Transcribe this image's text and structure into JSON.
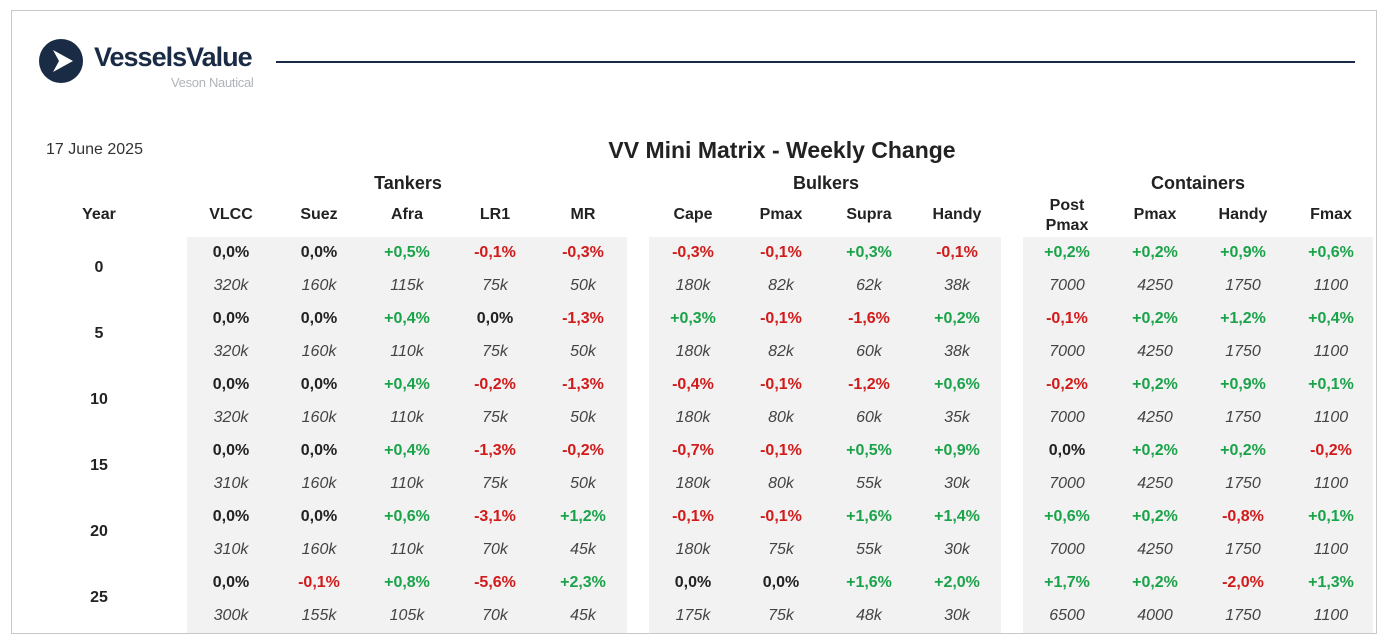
{
  "brand": {
    "name": "VesselsValue",
    "tagline": "Veson Nautical",
    "logo_icon": "play-triangle-circle-icon"
  },
  "report": {
    "date": "17 June 2025",
    "title": "VV Mini Matrix - Weekly Change"
  },
  "groups": [
    {
      "label": "Tankers"
    },
    {
      "label": "Bulkers"
    },
    {
      "label": "Containers"
    }
  ],
  "year_header": "Year",
  "columns": [
    "VLCC",
    "Suez",
    "Afra",
    "LR1",
    "MR",
    "Cape",
    "Pmax",
    "Supra",
    "Handy",
    "Post\nPmax",
    "Pmax",
    "Handy",
    "Fmax"
  ],
  "rows": [
    {
      "year": "0",
      "changes": [
        "0,0%",
        "0,0%",
        "+0,5%",
        "-0,1%",
        "-0,3%",
        "-0,3%",
        "-0,1%",
        "+0,3%",
        "-0,1%",
        "+0,2%",
        "+0,2%",
        "+0,9%",
        "+0,6%"
      ],
      "values": [
        "320k",
        "160k",
        "115k",
        "75k",
        "50k",
        "180k",
        "82k",
        "62k",
        "38k",
        "7000",
        "4250",
        "1750",
        "1100"
      ]
    },
    {
      "year": "5",
      "changes": [
        "0,0%",
        "0,0%",
        "+0,4%",
        "0,0%",
        "-1,3%",
        "+0,3%",
        "-0,1%",
        "-1,6%",
        "+0,2%",
        "-0,1%",
        "+0,2%",
        "+1,2%",
        "+0,4%"
      ],
      "values": [
        "320k",
        "160k",
        "110k",
        "75k",
        "50k",
        "180k",
        "82k",
        "60k",
        "38k",
        "7000",
        "4250",
        "1750",
        "1100"
      ]
    },
    {
      "year": "10",
      "changes": [
        "0,0%",
        "0,0%",
        "+0,4%",
        "-0,2%",
        "-1,3%",
        "-0,4%",
        "-0,1%",
        "-1,2%",
        "+0,6%",
        "-0,2%",
        "+0,2%",
        "+0,9%",
        "+0,1%"
      ],
      "values": [
        "320k",
        "160k",
        "110k",
        "75k",
        "50k",
        "180k",
        "80k",
        "60k",
        "35k",
        "7000",
        "4250",
        "1750",
        "1100"
      ]
    },
    {
      "year": "15",
      "changes": [
        "0,0%",
        "0,0%",
        "+0,4%",
        "-1,3%",
        "-0,2%",
        "-0,7%",
        "-0,1%",
        "+0,5%",
        "+0,9%",
        "0,0%",
        "+0,2%",
        "+0,2%",
        "-0,2%"
      ],
      "values": [
        "310k",
        "160k",
        "110k",
        "75k",
        "50k",
        "180k",
        "80k",
        "55k",
        "30k",
        "7000",
        "4250",
        "1750",
        "1100"
      ]
    },
    {
      "year": "20",
      "changes": [
        "0,0%",
        "0,0%",
        "+0,6%",
        "-3,1%",
        "+1,2%",
        "-0,1%",
        "-0,1%",
        "+1,6%",
        "+1,4%",
        "+0,6%",
        "+0,2%",
        "-0,8%",
        "+0,1%"
      ],
      "values": [
        "310k",
        "160k",
        "110k",
        "70k",
        "45k",
        "180k",
        "75k",
        "55k",
        "30k",
        "7000",
        "4250",
        "1750",
        "1100"
      ]
    },
    {
      "year": "25",
      "changes": [
        "0,0%",
        "-0,1%",
        "+0,8%",
        "-5,6%",
        "+2,3%",
        "0,0%",
        "0,0%",
        "+1,6%",
        "+2,0%",
        "+1,7%",
        "+0,2%",
        "-2,0%",
        "+1,3%"
      ],
      "values": [
        "300k",
        "155k",
        "105k",
        "70k",
        "45k",
        "175k",
        "75k",
        "48k",
        "30k",
        "6500",
        "4000",
        "1750",
        "1100"
      ]
    }
  ],
  "colors": {
    "positive": "#1ba34a",
    "negative": "#d11a1a",
    "neutral": "#222222",
    "brand": "#1a2b45",
    "band": "#f2f2f2"
  }
}
